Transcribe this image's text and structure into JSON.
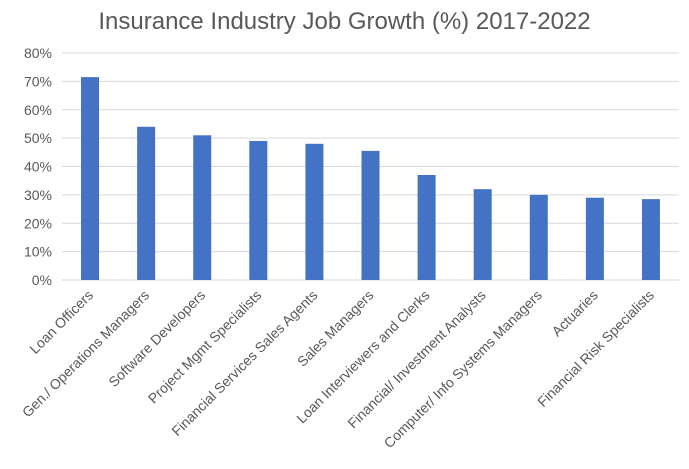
{
  "chart_data": {
    "type": "bar",
    "title": "Insurance Industry Job Growth (%) 2017-2022",
    "categories": [
      "Loan Officers",
      "Gen./ Operations Managers",
      "Software Developers",
      "Project Mgmt Specialists",
      "Financial Services Sales Agents",
      "Sales Managers",
      "Loan Interviewers and Clerks",
      "Financial/ Investment Analysts",
      "Computer/ Info Systems Managers",
      "Actuaries",
      "Financial Risk Specialists"
    ],
    "values": [
      71.5,
      54,
      51,
      49,
      48,
      45.5,
      37,
      32,
      30,
      29,
      28.5
    ],
    "ylim": [
      0,
      80
    ],
    "yticks": [
      "0%",
      "10%",
      "20%",
      "30%",
      "40%",
      "50%",
      "60%",
      "70%",
      "80%"
    ],
    "grid": true,
    "bar_color": "#4472C4",
    "grid_color": "#D9D9D9"
  }
}
